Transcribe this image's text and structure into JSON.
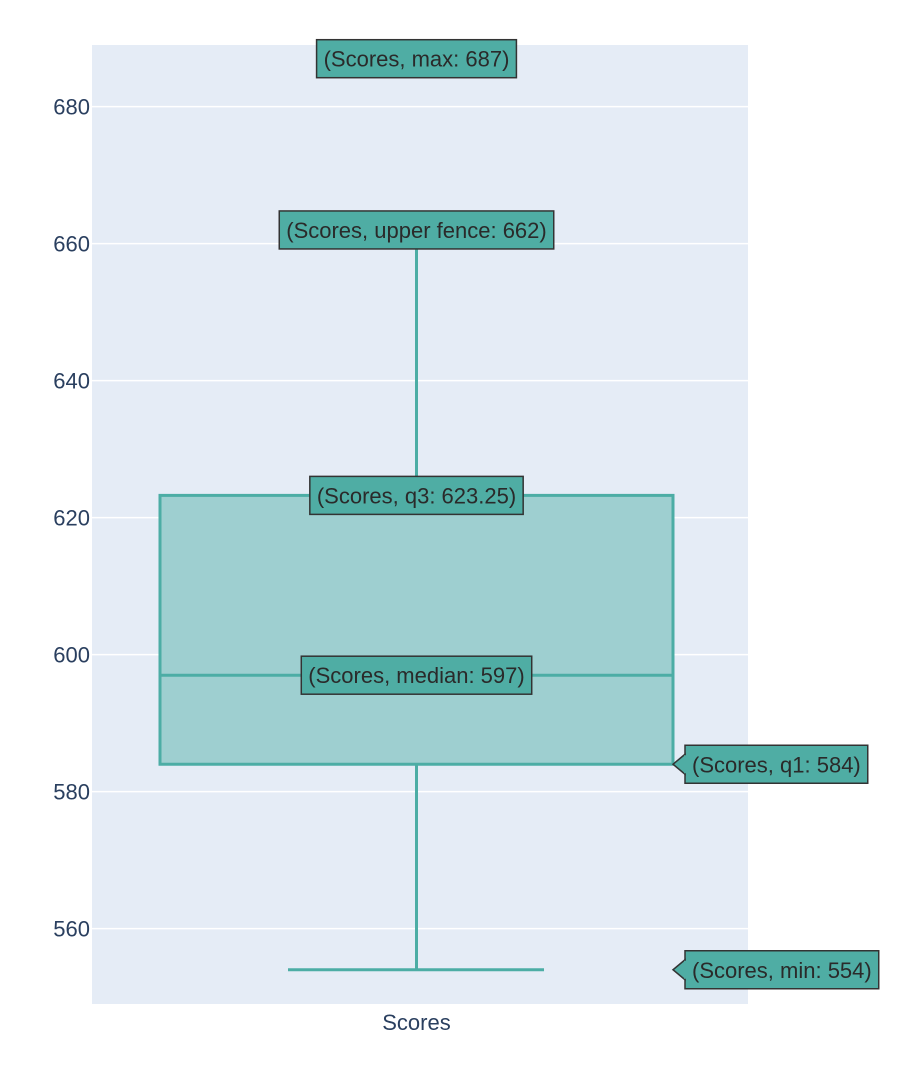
{
  "colors": {
    "plot_background": "#e5ecf6",
    "grid": "#ffffff",
    "box_line": "#4cada5",
    "box_fill": "#9ecfd0",
    "label_fill": "#4fada4",
    "label_border": "#333333",
    "tick_text": "#2a3f5f"
  },
  "chart_data": {
    "type": "box",
    "title": "",
    "xlabel": "",
    "ylabel": "",
    "categories": [
      "Scores"
    ],
    "ylim": [
      549,
      689
    ],
    "yticks": [
      560,
      580,
      600,
      620,
      640,
      660,
      680
    ],
    "grid": true,
    "legend": "none",
    "series": [
      {
        "category": "Scores",
        "min": 554,
        "q1": 584,
        "median": 597,
        "q3": 623.25,
        "upper_fence": 662,
        "max": 687
      }
    ],
    "hover_labels": [
      {
        "stat": "max",
        "text": "(Scores, max: 687)"
      },
      {
        "stat": "upper_fence",
        "text": "(Scores, upper fence: 662)"
      },
      {
        "stat": "q3",
        "text": "(Scores, q3: 623.25)"
      },
      {
        "stat": "median",
        "text": "(Scores, median: 597)"
      },
      {
        "stat": "q1",
        "text": "(Scores, q1: 584)"
      },
      {
        "stat": "min",
        "text": "(Scores, min: 554)"
      }
    ]
  }
}
